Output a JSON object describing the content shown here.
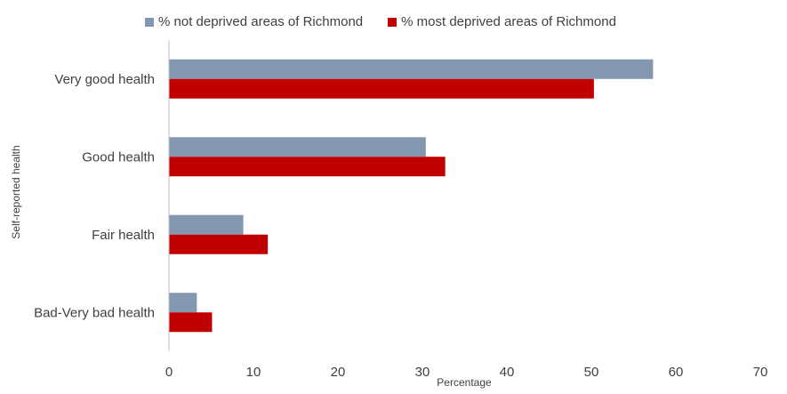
{
  "chart_data": {
    "type": "bar",
    "orientation": "horizontal",
    "categories": [
      "Very good health",
      "Good health",
      "Fair health",
      "Bad-Very bad health"
    ],
    "series": [
      {
        "name": "% not deprived areas of Richmond",
        "color": "#8497b0",
        "values": [
          57.3,
          30.4,
          8.8,
          3.3
        ]
      },
      {
        "name": "% most deprived areas of Richmond",
        "color": "#c00000",
        "values": [
          50.3,
          32.7,
          11.7,
          5.1
        ]
      }
    ],
    "xlabel": "Percentage",
    "ylabel": "Self-reported health",
    "xlim": [
      0,
      70
    ],
    "xticks": [
      0,
      10,
      20,
      30,
      40,
      50,
      60,
      70
    ],
    "grid": false,
    "legend_position": "top"
  }
}
